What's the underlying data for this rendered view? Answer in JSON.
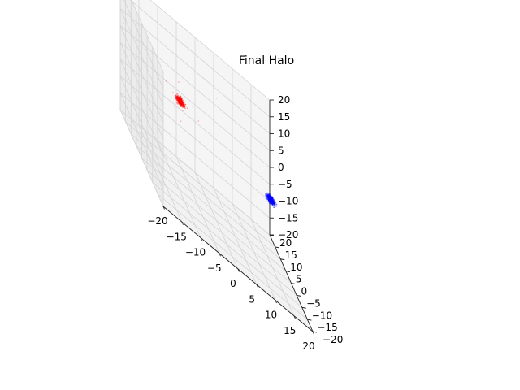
{
  "chart_data": {
    "type": "scatter",
    "projection": "3d",
    "title": "Final Halo",
    "xlabel": "",
    "ylabel": "",
    "zlabel": "",
    "xlim": [
      -20,
      20
    ],
    "ylim": [
      -20,
      20
    ],
    "zlim": [
      -20,
      20
    ],
    "x_ticks": [
      -20,
      -15,
      -10,
      -5,
      0,
      5,
      10,
      15,
      20
    ],
    "y_ticks": [
      -20,
      -15,
      -10,
      -5,
      0,
      5,
      10,
      15,
      20
    ],
    "z_ticks": [
      -20,
      -15,
      -10,
      -5,
      0,
      5,
      10,
      15,
      20
    ],
    "grid": true,
    "colors": {
      "series_1": "#ff0000",
      "series_2": "#0000ff"
    },
    "series": [
      {
        "color": "#ff0000",
        "cluster_center": [
          -12,
          -8,
          10
        ],
        "core_spread": 0.5,
        "outliers": [
          [
            -20,
            -15,
            14
          ],
          [
            -14,
            -10,
            8
          ],
          [
            -10,
            -6,
            9
          ],
          [
            -9,
            -9,
            12
          ],
          [
            -15,
            -5,
            11
          ],
          [
            -8,
            -11,
            10
          ],
          [
            -13,
            -12,
            6
          ],
          [
            -11,
            -3,
            13
          ],
          [
            4,
            14,
            10
          ],
          [
            -30,
            -20,
            26
          ],
          [
            -31,
            -21,
            25
          ]
        ]
      },
      {
        "color": "#0000ff",
        "cluster_center": [
          22,
          26,
          -12
        ],
        "core_spread": 0.5,
        "outliers": []
      }
    ]
  }
}
